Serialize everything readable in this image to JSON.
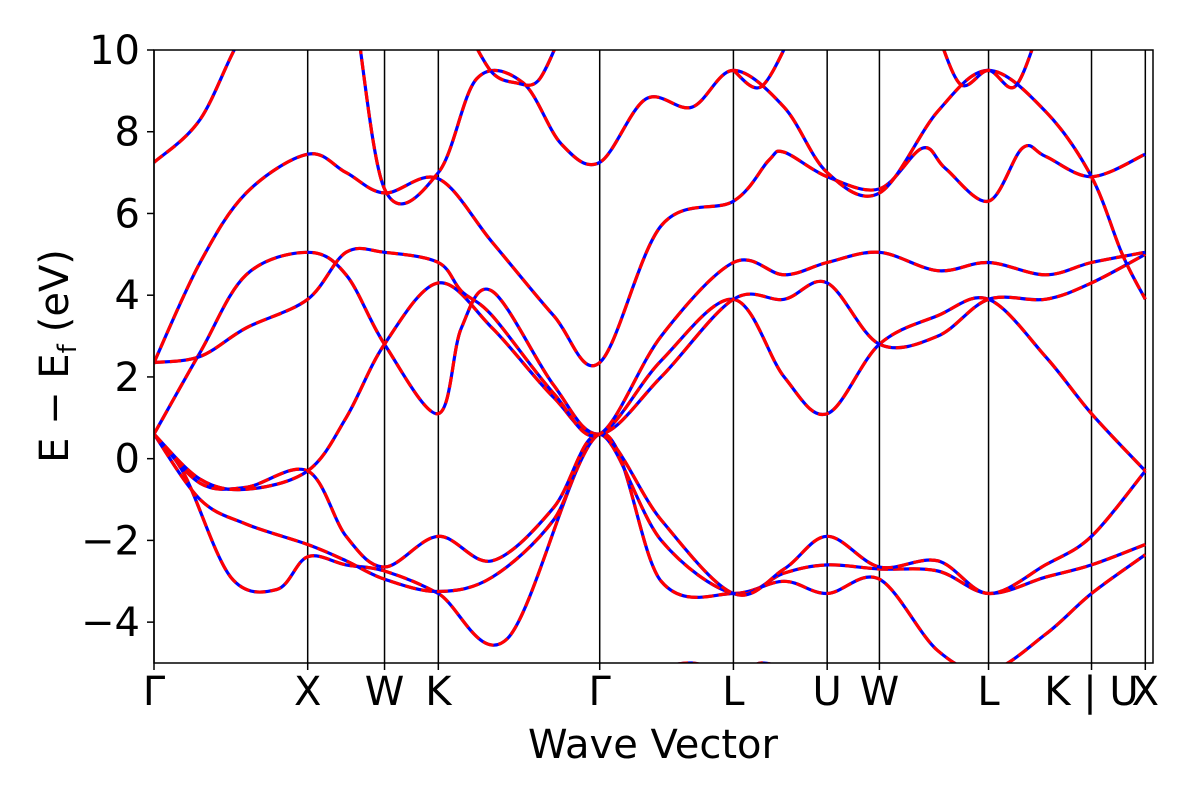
{
  "chart_data": {
    "type": "line",
    "title": "",
    "xlabel": "Wave Vector",
    "ylabel_main": "E − E",
    "ylabel_sub": "f",
    "ylabel_unit": "(eV)",
    "ylim": [
      -5,
      10
    ],
    "yticks": [
      -4,
      -2,
      0,
      2,
      4,
      6,
      8,
      10
    ],
    "ytick_labels": [
      "−4",
      "−2",
      "0",
      "2",
      "4",
      "6",
      "8",
      "10"
    ],
    "xlim": [
      0,
      6.5
    ],
    "kpoints": [
      {
        "label": "Γ",
        "x": 0.0
      },
      {
        "label": "X",
        "x": 1.0
      },
      {
        "label": "W",
        "x": 1.5
      },
      {
        "label": "K",
        "x": 1.85
      },
      {
        "label": "Γ",
        "x": 2.9
      },
      {
        "label": "L",
        "x": 3.77
      },
      {
        "label": "U",
        "x": 4.38
      },
      {
        "label": "W",
        "x": 4.72
      },
      {
        "label": "L",
        "x": 5.43
      },
      {
        "label": "K | U",
        "x": 6.1
      },
      {
        "label": "X",
        "x": 6.45
      }
    ],
    "series_style": [
      {
        "color": "#0000ff",
        "dashed": false
      },
      {
        "color": "#ff0000",
        "dashed": true
      }
    ],
    "bands": [
      {
        "x": [
          0,
          0.2,
          0.5,
          0.8,
          1.0,
          1.25,
          1.5,
          1.85,
          2.3,
          2.9,
          3.3,
          3.77,
          4.1,
          4.38,
          4.72,
          5.1,
          5.43,
          5.8,
          6.1,
          6.45
        ],
        "y": [
          0.6,
          -0.4,
          -2.9,
          -3.2,
          -2.4,
          -2.6,
          -2.75,
          -3.3,
          -4.4,
          0.6,
          -3.0,
          -3.3,
          -3.0,
          -3.3,
          -2.95,
          -4.7,
          -5.2,
          -4.3,
          -3.3,
          -2.35
        ]
      },
      {
        "x": [
          0,
          0.3,
          0.6,
          1.0,
          1.25,
          1.5,
          1.85,
          2.2,
          2.6,
          2.9,
          3.3,
          3.77,
          4.1,
          4.38,
          4.72,
          5.1,
          5.43,
          5.8,
          6.1,
          6.45
        ],
        "y": [
          0.6,
          -1.0,
          -1.6,
          -2.1,
          -2.5,
          -2.95,
          -3.25,
          -2.9,
          -1.5,
          0.6,
          -2.0,
          -3.3,
          -2.8,
          -2.6,
          -2.7,
          -2.75,
          -3.3,
          -2.9,
          -2.6,
          -2.1
        ]
      },
      {
        "x": [
          0,
          0.3,
          0.6,
          1.0,
          1.25,
          1.5,
          1.85,
          2.2,
          2.6,
          2.9,
          3.3,
          3.77,
          4.1,
          4.38,
          4.72,
          5.1,
          5.43,
          5.8,
          6.1,
          6.45
        ],
        "y": [
          0.6,
          -0.6,
          -0.7,
          -0.3,
          -1.9,
          -2.65,
          -1.9,
          -2.5,
          -1.2,
          0.6,
          -1.5,
          -3.3,
          -2.7,
          -1.9,
          -2.65,
          -2.5,
          -3.3,
          -2.6,
          -1.9,
          -0.3
        ]
      },
      {
        "x": [
          0,
          0.3,
          0.6,
          1.0,
          1.25,
          1.5,
          1.85,
          2.2,
          2.6,
          2.9,
          3.3,
          3.77,
          4.1,
          4.38,
          4.72,
          5.1,
          5.43,
          5.8,
          6.1,
          6.45
        ],
        "y": [
          0.6,
          -0.5,
          -0.75,
          -0.3,
          1.0,
          2.8,
          4.3,
          3.2,
          1.5,
          0.6,
          2.4,
          3.9,
          2.0,
          1.1,
          2.8,
          3.5,
          3.9,
          2.5,
          1.1,
          -0.3
        ]
      },
      {
        "x": [
          0,
          0.3,
          0.6,
          1.0,
          1.25,
          1.5,
          1.85,
          2.0,
          2.2,
          2.6,
          2.9,
          3.3,
          3.77,
          4.1,
          4.38,
          4.72,
          5.1,
          5.43,
          5.8,
          6.1,
          6.45
        ],
        "y": [
          0.6,
          2.6,
          4.5,
          5.05,
          4.5,
          2.8,
          1.1,
          3.2,
          4.1,
          1.8,
          0.6,
          2.0,
          3.9,
          3.9,
          4.3,
          2.8,
          3.0,
          3.9,
          3.9,
          4.3,
          5.0
        ]
      },
      {
        "x": [
          0,
          0.3,
          0.6,
          1.0,
          1.25,
          1.5,
          1.85,
          2.0,
          2.2,
          2.6,
          2.9,
          3.3,
          3.77,
          4.1,
          4.38,
          4.72,
          5.1,
          5.43,
          5.8,
          6.1,
          6.45
        ],
        "y": [
          2.35,
          2.5,
          3.2,
          3.9,
          5.05,
          5.05,
          4.8,
          4.1,
          3.5,
          1.6,
          0.6,
          3.0,
          4.8,
          4.5,
          4.8,
          5.05,
          4.6,
          4.8,
          4.5,
          4.8,
          5.05
        ]
      },
      {
        "x": [
          0,
          0.3,
          0.6,
          1.0,
          1.25,
          1.5,
          1.85,
          2.2,
          2.6,
          2.9,
          3.3,
          3.77,
          4.0,
          4.1,
          4.38,
          4.72,
          5.0,
          5.15,
          5.43,
          5.65,
          5.8,
          6.1,
          6.45
        ],
        "y": [
          2.35,
          4.8,
          6.5,
          7.45,
          7.0,
          6.5,
          6.85,
          5.3,
          3.5,
          2.35,
          5.7,
          6.3,
          7.3,
          7.5,
          6.9,
          6.6,
          7.6,
          7.1,
          6.3,
          7.6,
          7.4,
          6.9,
          7.45
        ]
      },
      {
        "x": [
          0,
          0.3,
          0.6,
          1.0,
          1.25,
          1.5,
          1.85,
          2.1,
          2.4,
          2.65,
          2.9,
          3.2,
          3.5,
          3.77,
          4.1,
          4.38,
          4.72,
          5.1,
          5.43,
          5.8,
          6.1,
          6.3,
          6.45
        ],
        "y": [
          7.25,
          8.3,
          10.5,
          12,
          12,
          6.6,
          7.0,
          9.3,
          9.2,
          7.7,
          7.25,
          8.8,
          8.6,
          9.5,
          8.6,
          7.0,
          6.5,
          8.5,
          9.5,
          8.5,
          6.9,
          5.0,
          3.9
        ]
      },
      {
        "x": [
          2.05,
          2.2,
          2.35,
          2.5,
          2.65
        ],
        "y": [
          10.4,
          9.45,
          9.2,
          9.25,
          10.4
        ]
      },
      {
        "x": [
          3.77,
          3.95,
          4.15
        ],
        "y": [
          9.5,
          9.1,
          10.4
        ]
      },
      {
        "x": [
          5.1,
          5.25,
          5.43,
          5.6,
          5.75
        ],
        "y": [
          10.4,
          9.15,
          9.5,
          9.1,
          10.4
        ]
      },
      {
        "x": [
          3.2,
          3.5,
          3.77,
          3.95,
          4.15
        ],
        "y": [
          -5.2,
          -5.0,
          -5.3,
          -5.0,
          -5.2
        ]
      }
    ]
  }
}
